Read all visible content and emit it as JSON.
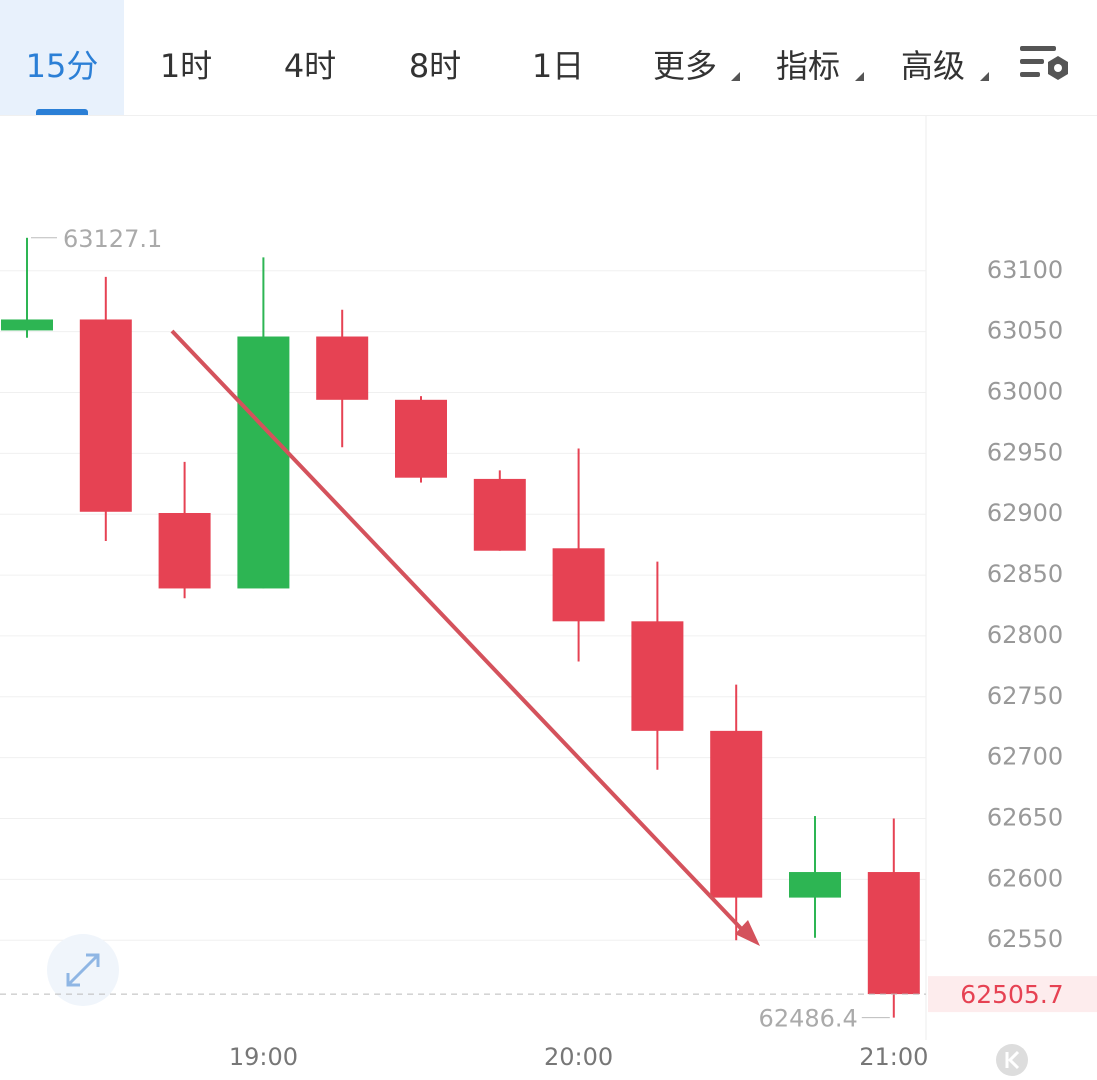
{
  "tabs": [
    "15分",
    "1时",
    "4时",
    "8时",
    "1日",
    "更多",
    "指标",
    "高级"
  ],
  "chart_data": {
    "type": "candlestick",
    "categories": [
      null,
      null,
      null,
      "19:00",
      null,
      null,
      null,
      "20:00",
      null,
      null,
      null,
      "21:00"
    ],
    "open": [
      63051,
      63060,
      62901,
      62839,
      63046,
      62994,
      62929,
      62872,
      62812,
      62722,
      62585,
      62606
    ],
    "high": [
      63127.1,
      63095,
      62943,
      63111,
      63068,
      62997,
      62936,
      62954,
      62861,
      62760,
      62652,
      62650
    ],
    "low": [
      63045,
      62878,
      62831,
      62839,
      62955,
      62926,
      62870,
      62779,
      62690,
      62550,
      62552,
      62486.4
    ],
    "close": [
      63060,
      62902,
      62839,
      63046,
      62994,
      62930,
      62870,
      62812,
      62722,
      62585,
      62606,
      62505.7
    ],
    "ylim": [
      62468,
      63228
    ],
    "yticks": [
      62550,
      62600,
      62650,
      62700,
      62750,
      62800,
      62850,
      62900,
      62950,
      63000,
      63050,
      63100
    ],
    "up_color": "#2db553",
    "down_color": "#e64253",
    "grid": true
  }
}
